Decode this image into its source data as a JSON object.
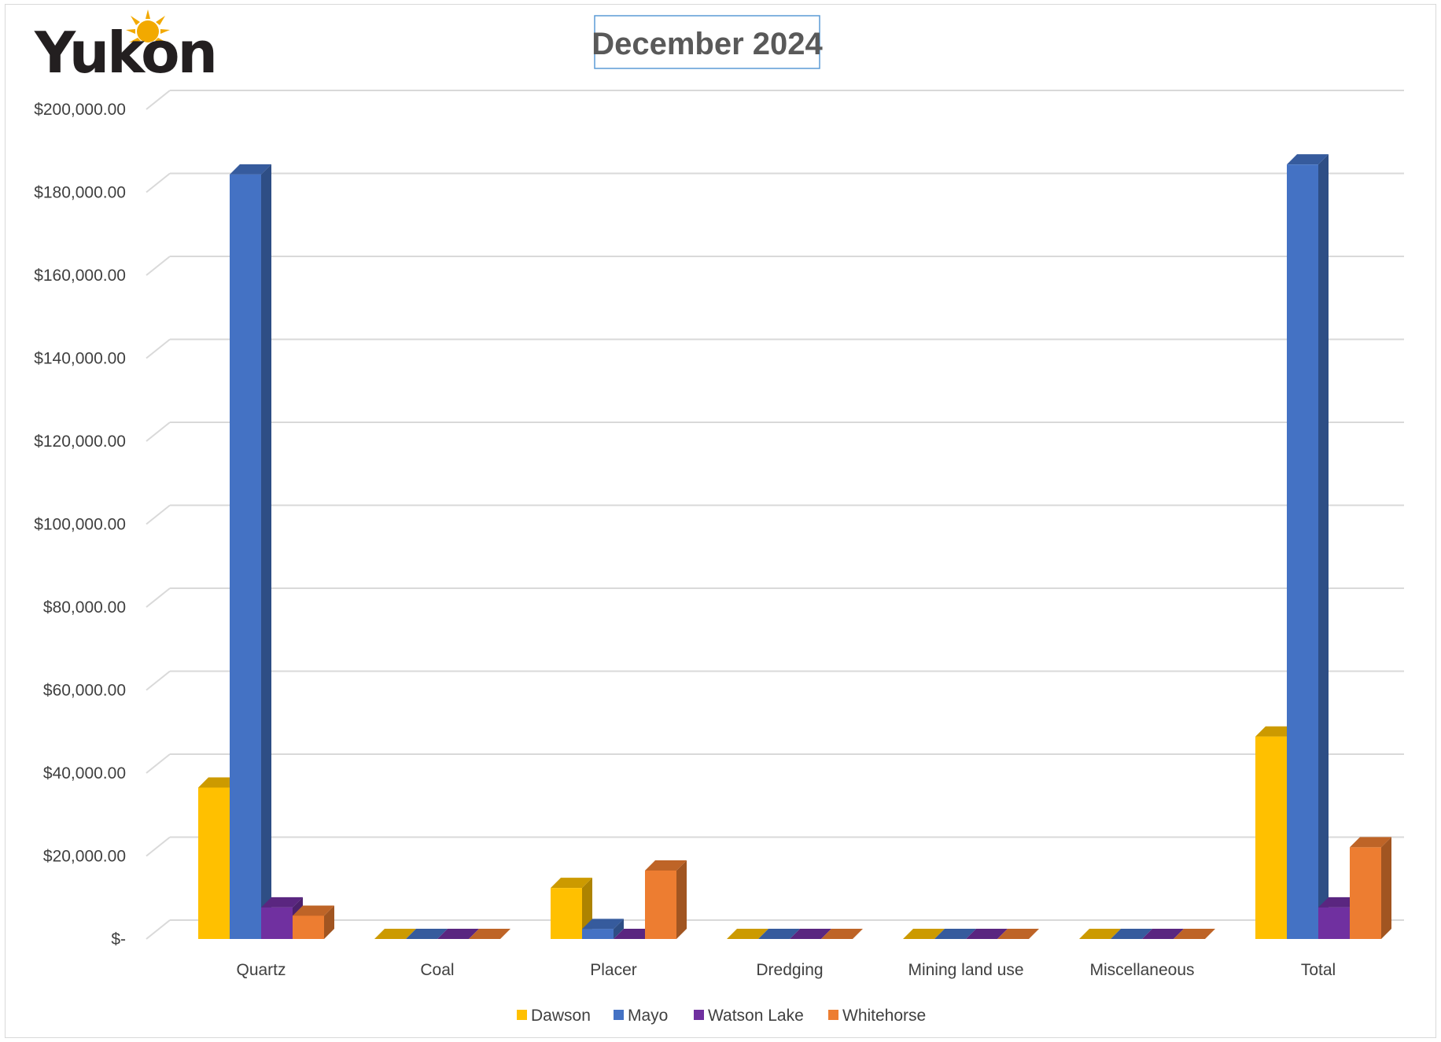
{
  "logo": {
    "text": "Yukon"
  },
  "chart_data": {
    "type": "bar",
    "title": "December 2024",
    "categories": [
      "Quartz",
      "Coal",
      "Placer",
      "Dredging",
      "Mining land use",
      "Miscellaneous",
      "Total"
    ],
    "series": [
      {
        "name": "Dawson",
        "color": "#ffc000",
        "values": [
          36500,
          0,
          12300,
          0,
          0,
          0,
          48800
        ]
      },
      {
        "name": "Mayo",
        "color": "#4472c4",
        "values": [
          184300,
          0,
          2400,
          0,
          0,
          0,
          186700
        ]
      },
      {
        "name": "Watson Lake",
        "color": "#7030a0",
        "values": [
          7600,
          0,
          0,
          0,
          0,
          0,
          7600
        ]
      },
      {
        "name": "Whitehorse",
        "color": "#ed7d31",
        "values": [
          5600,
          0,
          16500,
          0,
          0,
          0,
          22100
        ]
      }
    ],
    "ylim": [
      0,
      200000
    ],
    "yticks": [
      {
        "value": 0,
        "label": "$-"
      },
      {
        "value": 20000,
        "label": "$20,000.00"
      },
      {
        "value": 40000,
        "label": "$40,000.00"
      },
      {
        "value": 60000,
        "label": "$60,000.00"
      },
      {
        "value": 80000,
        "label": "$80,000.00"
      },
      {
        "value": 100000,
        "label": "$100,000.00"
      },
      {
        "value": 120000,
        "label": "$120,000.00"
      },
      {
        "value": 140000,
        "label": "$140,000.00"
      },
      {
        "value": 160000,
        "label": "$160,000.00"
      },
      {
        "value": 180000,
        "label": "$180,000.00"
      },
      {
        "value": 200000,
        "label": "$200,000.00"
      }
    ],
    "grid": true,
    "legend_position": "bottom",
    "style": "3d-clustered-column"
  }
}
